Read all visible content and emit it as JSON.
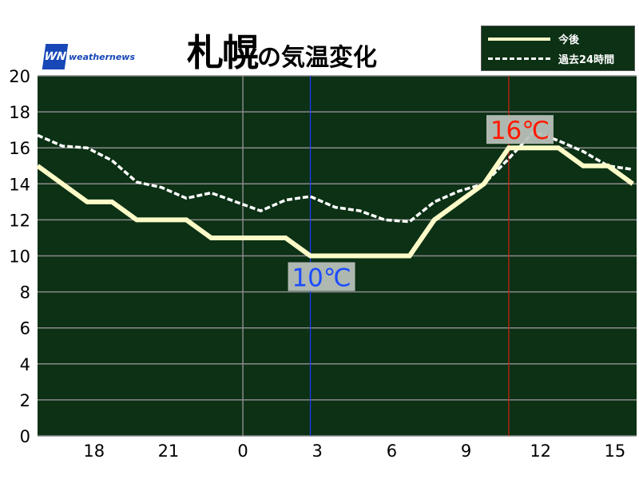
{
  "title": {
    "city": "札幌",
    "suffix": "の気温変化"
  },
  "logo": {
    "mark": "WN",
    "text": "weathernews"
  },
  "legend": [
    {
      "label": "今後",
      "style": "solid"
    },
    {
      "label": "過去24時間",
      "style": "dashed"
    }
  ],
  "colors": {
    "plot_bg": "#0c3115",
    "future": "#fdfbc8",
    "past": "#ffffff",
    "min_line": "#1a3cff",
    "max_line": "#d42010",
    "min_label": "#1a4cff",
    "max_label": "#ff1a00",
    "label_bg": "#b8c0b8"
  },
  "chart_data": {
    "type": "line",
    "ylim": [
      0,
      20
    ],
    "yticks": [
      "0",
      "2",
      "4",
      "6",
      "8",
      "10",
      "12",
      "14",
      "16",
      "18",
      "20"
    ],
    "xticks": [
      "18",
      "21",
      "0",
      "3",
      "6",
      "9",
      "12",
      "15"
    ],
    "grid": true,
    "legend_position": "top-right",
    "series": [
      {
        "name": "今後",
        "values": [
          15,
          14,
          13,
          13,
          12,
          12,
          12,
          11,
          11,
          11,
          11,
          10,
          10,
          10,
          10,
          10,
          12,
          13,
          14,
          16,
          16,
          16,
          15,
          15,
          14
        ]
      },
      {
        "name": "過去24時間",
        "values": [
          16.7,
          16.1,
          16.0,
          15.3,
          14.1,
          13.8,
          13.2,
          13.5,
          13.0,
          12.5,
          13.1,
          13.3,
          12.7,
          12.5,
          12.0,
          11.9,
          13.0,
          13.6,
          14.0,
          15.4,
          16.9,
          16.4,
          15.8,
          15.0,
          14.8
        ]
      }
    ],
    "annotations": {
      "min_label": "10℃",
      "max_label": "16℃"
    }
  }
}
